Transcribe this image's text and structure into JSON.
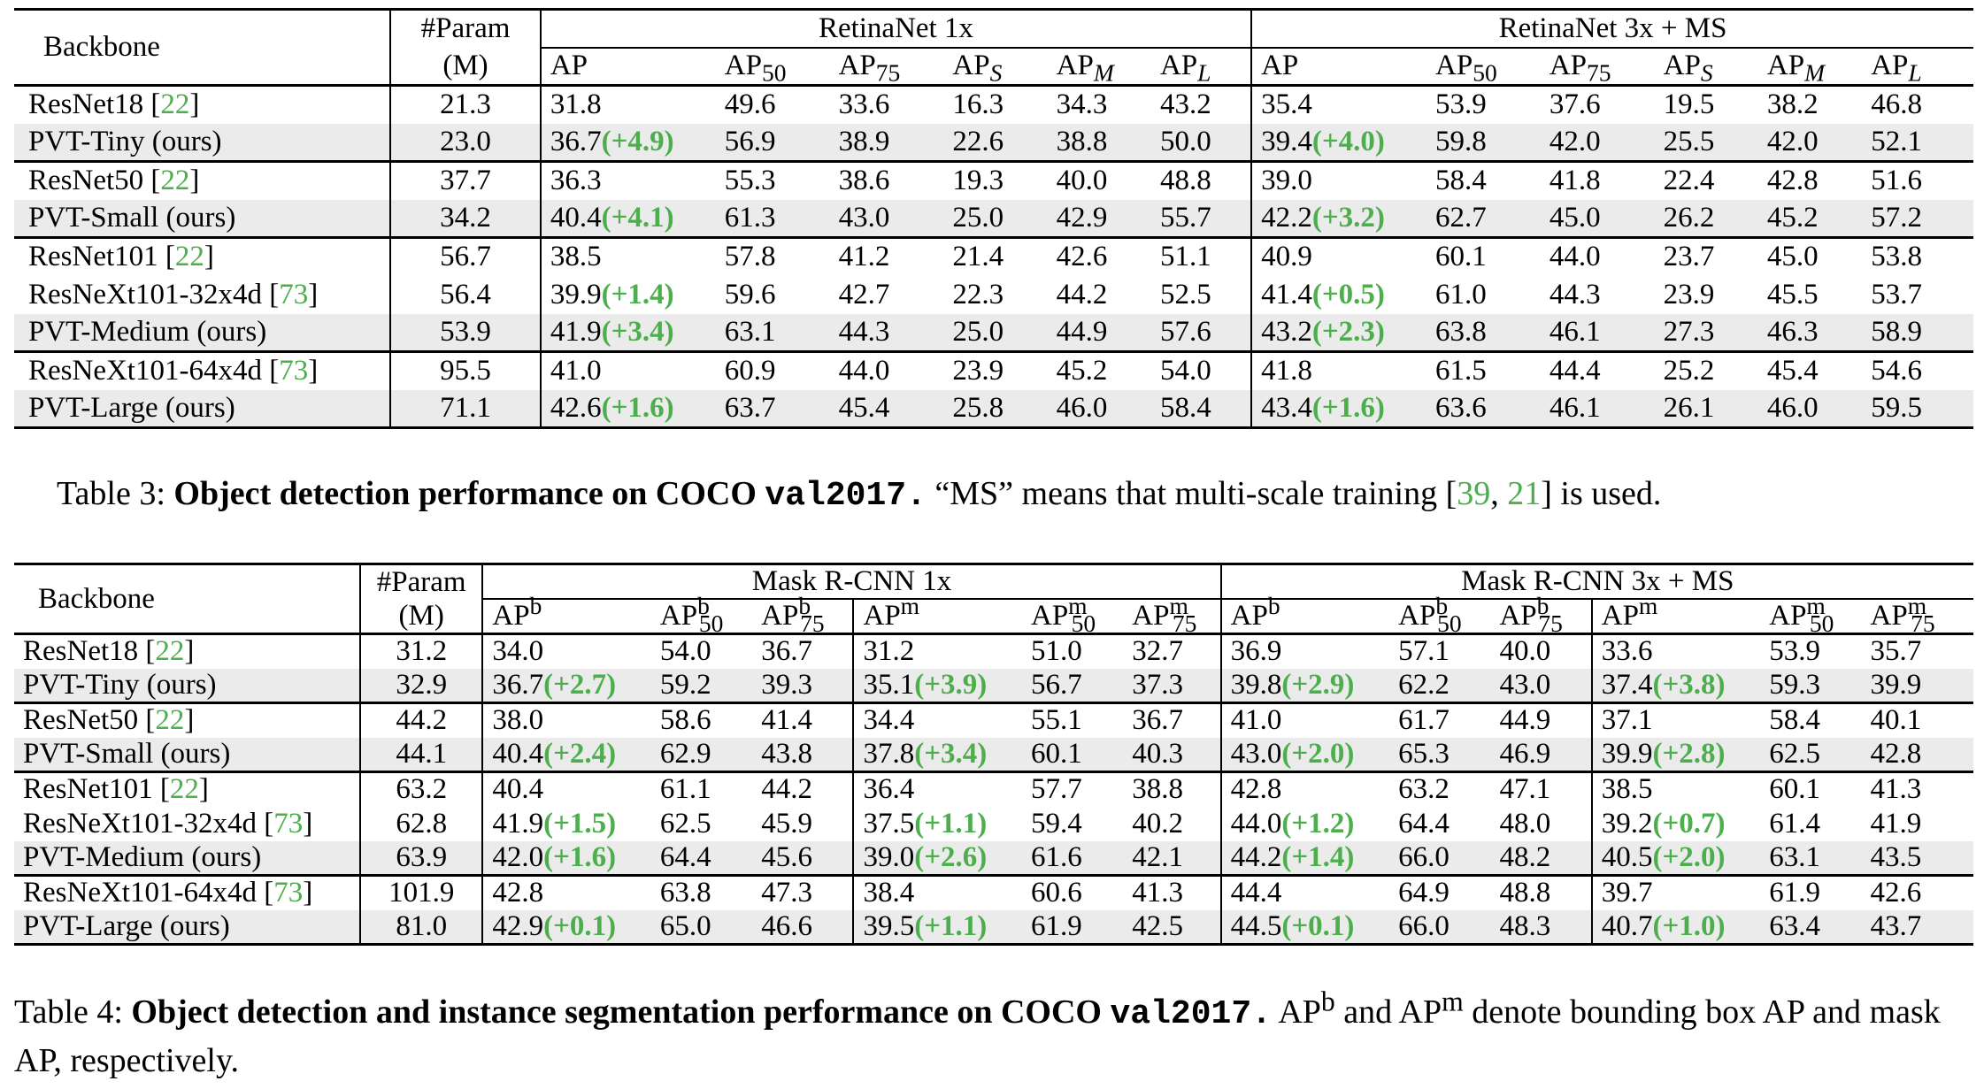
{
  "table3": {
    "header": {
      "backbone": "Backbone",
      "param_line1": "#Param",
      "param_line2": "(M)",
      "group1": "RetinaNet 1x",
      "group2": "RetinaNet 3x + MS",
      "metrics": [
        "AP",
        "AP50",
        "AP75",
        "APS",
        "APM",
        "APL"
      ]
    },
    "rows": [
      {
        "name": "ResNet18",
        "cite": "22",
        "param": "21.3",
        "g1": [
          "31.8",
          "49.6",
          "33.6",
          "16.3",
          "34.3",
          "43.2"
        ],
        "g2": [
          "35.4",
          "53.9",
          "37.6",
          "19.5",
          "38.2",
          "46.8"
        ]
      },
      {
        "name": "PVT-Tiny (ours)",
        "param": "23.0",
        "g1": [
          "36.7",
          "56.9",
          "38.9",
          "22.6",
          "38.8",
          "50.0"
        ],
        "g1_delta": "(+4.9)",
        "g2": [
          "39.4",
          "59.8",
          "42.0",
          "25.5",
          "42.0",
          "52.1"
        ],
        "g2_delta": "(+4.0)"
      },
      {
        "name": "ResNet50",
        "cite": "22",
        "param": "37.7",
        "g1": [
          "36.3",
          "55.3",
          "38.6",
          "19.3",
          "40.0",
          "48.8"
        ],
        "g2": [
          "39.0",
          "58.4",
          "41.8",
          "22.4",
          "42.8",
          "51.6"
        ]
      },
      {
        "name": "PVT-Small (ours)",
        "param": "34.2",
        "g1": [
          "40.4",
          "61.3",
          "43.0",
          "25.0",
          "42.9",
          "55.7"
        ],
        "g1_delta": "(+4.1)",
        "g2": [
          "42.2",
          "62.7",
          "45.0",
          "26.2",
          "45.2",
          "57.2"
        ],
        "g2_delta": "(+3.2)"
      },
      {
        "name": "ResNet101",
        "cite": "22",
        "param": "56.7",
        "g1": [
          "38.5",
          "57.8",
          "41.2",
          "21.4",
          "42.6",
          "51.1"
        ],
        "g2": [
          "40.9",
          "60.1",
          "44.0",
          "23.7",
          "45.0",
          "53.8"
        ]
      },
      {
        "name": "ResNeXt101-32x4d",
        "cite": "73",
        "param": "56.4",
        "g1": [
          "39.9",
          "59.6",
          "42.7",
          "22.3",
          "44.2",
          "52.5"
        ],
        "g1_delta": "(+1.4)",
        "g2": [
          "41.4",
          "61.0",
          "44.3",
          "23.9",
          "45.5",
          "53.7"
        ],
        "g2_delta": "(+0.5)"
      },
      {
        "name": "PVT-Medium (ours)",
        "param": "53.9",
        "g1": [
          "41.9",
          "63.1",
          "44.3",
          "25.0",
          "44.9",
          "57.6"
        ],
        "g1_delta": "(+3.4)",
        "g2": [
          "43.2",
          "63.8",
          "46.1",
          "27.3",
          "46.3",
          "58.9"
        ],
        "g2_delta": "(+2.3)"
      },
      {
        "name": "ResNeXt101-64x4d",
        "cite": "73",
        "param": "95.5",
        "g1": [
          "41.0",
          "60.9",
          "44.0",
          "23.9",
          "45.2",
          "54.0"
        ],
        "g2": [
          "41.8",
          "61.5",
          "44.4",
          "25.2",
          "45.4",
          "54.6"
        ]
      },
      {
        "name": "PVT-Large (ours)",
        "param": "71.1",
        "g1": [
          "42.6",
          "63.7",
          "45.4",
          "25.8",
          "46.0",
          "58.4"
        ],
        "g1_delta": "(+1.6)",
        "g2": [
          "43.4",
          "63.6",
          "46.1",
          "26.1",
          "46.0",
          "59.5"
        ],
        "g2_delta": "(+1.6)"
      }
    ],
    "caption": {
      "label": "Table 3:",
      "bold": "Object detection performance on COCO",
      "code": "val2017.",
      "text_a": "“MS” means that multi-scale training [",
      "cite1": "39",
      "sep": ", ",
      "cite2": "21",
      "text_b": "] is used."
    }
  },
  "table4": {
    "header": {
      "backbone": "Backbone",
      "param_line1": "#Param",
      "param_line2": "(M)",
      "group1": "Mask R-CNN 1x",
      "group2": "Mask R-CNN 3x + MS",
      "metrics": [
        "APb",
        "APb50",
        "APb75",
        "APm",
        "APm50",
        "APm75"
      ]
    },
    "rows": [
      {
        "name": "ResNet18",
        "cite": "22",
        "param": "31.2",
        "g1": [
          "34.0",
          "54.0",
          "36.7",
          "31.2",
          "51.0",
          "32.7"
        ],
        "g2": [
          "36.9",
          "57.1",
          "40.0",
          "33.6",
          "53.9",
          "35.7"
        ]
      },
      {
        "name": "PVT-Tiny (ours)",
        "param": "32.9",
        "g1": [
          "36.7",
          "59.2",
          "39.3",
          "35.1",
          "56.7",
          "37.3"
        ],
        "g1_delta": [
          "(+2.7)",
          "(+3.9)"
        ],
        "g2": [
          "39.8",
          "62.2",
          "43.0",
          "37.4",
          "59.3",
          "39.9"
        ],
        "g2_delta": [
          "(+2.9)",
          "(+3.8)"
        ]
      },
      {
        "name": "ResNet50",
        "cite": "22",
        "param": "44.2",
        "g1": [
          "38.0",
          "58.6",
          "41.4",
          "34.4",
          "55.1",
          "36.7"
        ],
        "g2": [
          "41.0",
          "61.7",
          "44.9",
          "37.1",
          "58.4",
          "40.1"
        ]
      },
      {
        "name": "PVT-Small (ours)",
        "param": "44.1",
        "g1": [
          "40.4",
          "62.9",
          "43.8",
          "37.8",
          "60.1",
          "40.3"
        ],
        "g1_delta": [
          "(+2.4)",
          "(+3.4)"
        ],
        "g2": [
          "43.0",
          "65.3",
          "46.9",
          "39.9",
          "62.5",
          "42.8"
        ],
        "g2_delta": [
          "(+2.0)",
          "(+2.8)"
        ]
      },
      {
        "name": "ResNet101",
        "cite": "22",
        "param": "63.2",
        "g1": [
          "40.4",
          "61.1",
          "44.2",
          "36.4",
          "57.7",
          "38.8"
        ],
        "g2": [
          "42.8",
          "63.2",
          "47.1",
          "38.5",
          "60.1",
          "41.3"
        ]
      },
      {
        "name": "ResNeXt101-32x4d",
        "cite": "73",
        "param": "62.8",
        "g1": [
          "41.9",
          "62.5",
          "45.9",
          "37.5",
          "59.4",
          "40.2"
        ],
        "g1_delta": [
          "(+1.5)",
          "(+1.1)"
        ],
        "g2": [
          "44.0",
          "64.4",
          "48.0",
          "39.2",
          "61.4",
          "41.9"
        ],
        "g2_delta": [
          "(+1.2)",
          "(+0.7)"
        ]
      },
      {
        "name": "PVT-Medium (ours)",
        "param": "63.9",
        "g1": [
          "42.0",
          "64.4",
          "45.6",
          "39.0",
          "61.6",
          "42.1"
        ],
        "g1_delta": [
          "(+1.6)",
          "(+2.6)"
        ],
        "g2": [
          "44.2",
          "66.0",
          "48.2",
          "40.5",
          "63.1",
          "43.5"
        ],
        "g2_delta": [
          "(+1.4)",
          "(+2.0)"
        ]
      },
      {
        "name": "ResNeXt101-64x4d",
        "cite": "73",
        "param": "101.9",
        "g1": [
          "42.8",
          "63.8",
          "47.3",
          "38.4",
          "60.6",
          "41.3"
        ],
        "g2": [
          "44.4",
          "64.9",
          "48.8",
          "39.7",
          "61.9",
          "42.6"
        ]
      },
      {
        "name": "PVT-Large (ours)",
        "param": "81.0",
        "g1": [
          "42.9",
          "65.0",
          "46.6",
          "39.5",
          "61.9",
          "42.5"
        ],
        "g1_delta": [
          "(+0.1)",
          "(+1.1)"
        ],
        "g2": [
          "44.5",
          "66.0",
          "48.3",
          "40.7",
          "63.4",
          "43.7"
        ],
        "g2_delta": [
          "(+0.1)",
          "(+1.0)"
        ]
      }
    ],
    "caption": {
      "label": "Table 4:",
      "bold": "Object detection and instance segmentation performance on COCO",
      "code": "val2017.",
      "text_a": "AP",
      "sup_b": "b",
      "text_b": " and AP",
      "sup_m": "m",
      "text_c": " denote bounding box AP and mask AP, respectively."
    }
  },
  "colors": {
    "citation": "#4cae4c",
    "improvement": "#4cae4c",
    "shaded_row": "#ebebeb"
  }
}
